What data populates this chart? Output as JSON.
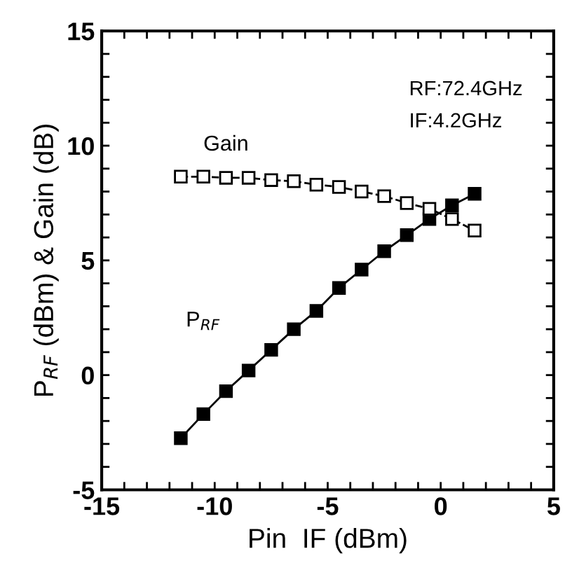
{
  "chart_data": {
    "type": "line",
    "xlabel": "Pin  IF (dBm)",
    "ylabel": "P$_{RF}$ (dBm) & Gain (dB)",
    "x": [
      -11.5,
      -10.5,
      -9.5,
      -8.5,
      -7.5,
      -6.5,
      -5.5,
      -4.5,
      -3.5,
      -2.5,
      -1.5,
      -0.5,
      0.5,
      1.5
    ],
    "series": [
      {
        "name": "P$_{RF}$",
        "color": "#000000",
        "marker": "square",
        "line_style": "solid",
        "values": [
          -2.75,
          -1.7,
          -0.7,
          0.2,
          1.1,
          2.0,
          2.8,
          3.8,
          4.6,
          5.4,
          6.1,
          6.8,
          7.4,
          7.9
        ]
      },
      {
        "name": "Gain",
        "color": "#000000",
        "marker": "square",
        "line_style": "dashed",
        "values": [
          8.65,
          8.65,
          8.6,
          8.6,
          8.5,
          8.45,
          8.3,
          8.2,
          8.0,
          7.8,
          7.5,
          7.25,
          6.8,
          6.3
        ]
      }
    ],
    "annotations": [
      "RF:72.4GHz",
      "IF:4.2GHz"
    ],
    "xlim": [
      -15,
      5
    ],
    "ylim": [
      -5,
      15
    ],
    "xticks": [
      -15,
      {
        "value": -14,
        "label": null
      },
      {
        "value": -13,
        "label": null
      },
      {
        "value": -12,
        "label": null
      },
      {
        "value": -11,
        "label": null
      },
      -10,
      {
        "value": -9,
        "label": null
      },
      {
        "value": -8,
        "label": null
      },
      {
        "value": -7,
        "label": null
      },
      {
        "value": -6,
        "label": null
      },
      -5,
      {
        "value": -4,
        "label": null
      },
      {
        "value": -3,
        "label": null
      },
      {
        "value": -2,
        "label": null
      },
      {
        "value": -1,
        "label": null
      },
      0,
      {
        "value": 1,
        "label": null
      },
      {
        "value": 2,
        "label": null
      },
      {
        "value": 3,
        "label": null
      },
      {
        "value": 4,
        "label": null
      },
      5
    ],
    "yticks": [
      -5,
      {
        "value": -4,
        "label": null
      },
      {
        "value": -3,
        "label": null
      },
      {
        "value": -2,
        "label": null
      },
      {
        "value": -1,
        "label": null
      },
      0,
      {
        "value": 1,
        "label": null
      },
      {
        "value": 2,
        "label": null
      },
      {
        "value": 3,
        "label": null
      },
      {
        "value": 4,
        "label": null
      },
      5,
      {
        "value": 6,
        "label": null
      },
      {
        "value": 7,
        "label": null
      },
      {
        "value": 8,
        "label": null
      },
      {
        "value": 9,
        "label": null
      },
      10,
      {
        "value": 11,
        "label": null
      },
      {
        "value": 12,
        "label": null
      },
      {
        "value": 13,
        "label": null
      },
      {
        "value": 14,
        "label": null
      },
      15
    ],
    "grid": false,
    "legend": false
  }
}
